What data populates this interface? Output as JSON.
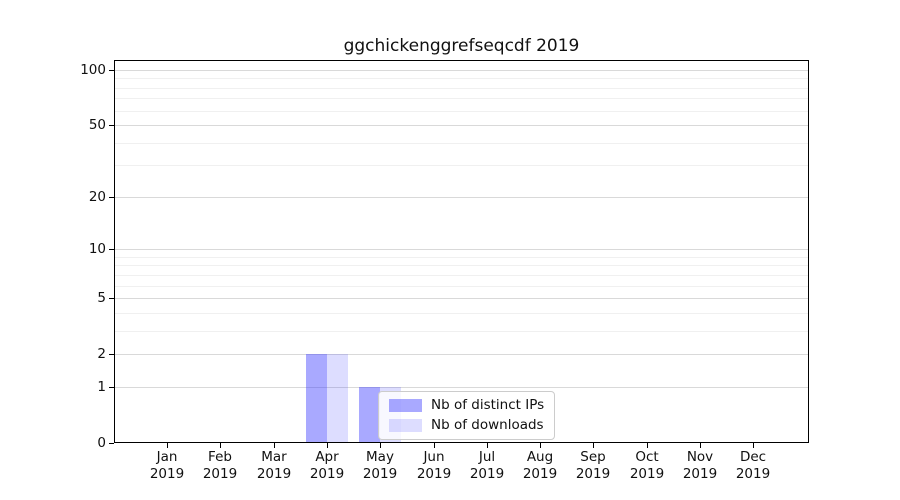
{
  "title": "ggchickenggrefseqcdf 2019",
  "colors": {
    "bar_distinct_ips": "rgba(51,51,255,0.42)",
    "bar_downloads": "rgba(51,51,255,0.17)",
    "grid_major": "#d9d9d9",
    "grid_minor": "#f0f0f0",
    "spine": "#000000",
    "legend_border": "#cccccc",
    "text": "#111111"
  },
  "chart_data": {
    "type": "bar",
    "title": "ggchickenggrefseqcdf 2019",
    "categories": [
      "Jan",
      "Feb",
      "Mar",
      "Apr",
      "May",
      "Jun",
      "Jul",
      "Aug",
      "Sep",
      "Oct",
      "Nov",
      "Dec"
    ],
    "year": "2019",
    "series": [
      {
        "name": "Nb of distinct IPs",
        "values": [
          0,
          0,
          0,
          2,
          1,
          0,
          0,
          0,
          0,
          0,
          0,
          0
        ],
        "color": "rgba(51,51,255,0.42)"
      },
      {
        "name": "Nb of downloads",
        "values": [
          0,
          0,
          0,
          2,
          1,
          0,
          0,
          0,
          0,
          0,
          0,
          0
        ],
        "color": "rgba(51,51,255,0.17)"
      }
    ],
    "yscale": "log1p",
    "ylim": [
      0,
      113
    ],
    "yticks_major": [
      0,
      1,
      2,
      5,
      10,
      20,
      50,
      100
    ],
    "yticks_minor": [
      3,
      4,
      6,
      7,
      8,
      9,
      30,
      40,
      60,
      70,
      80,
      90
    ],
    "xlabel": "",
    "ylabel": "",
    "grid": "horizontal",
    "legend_position": "inside-lower-center"
  }
}
